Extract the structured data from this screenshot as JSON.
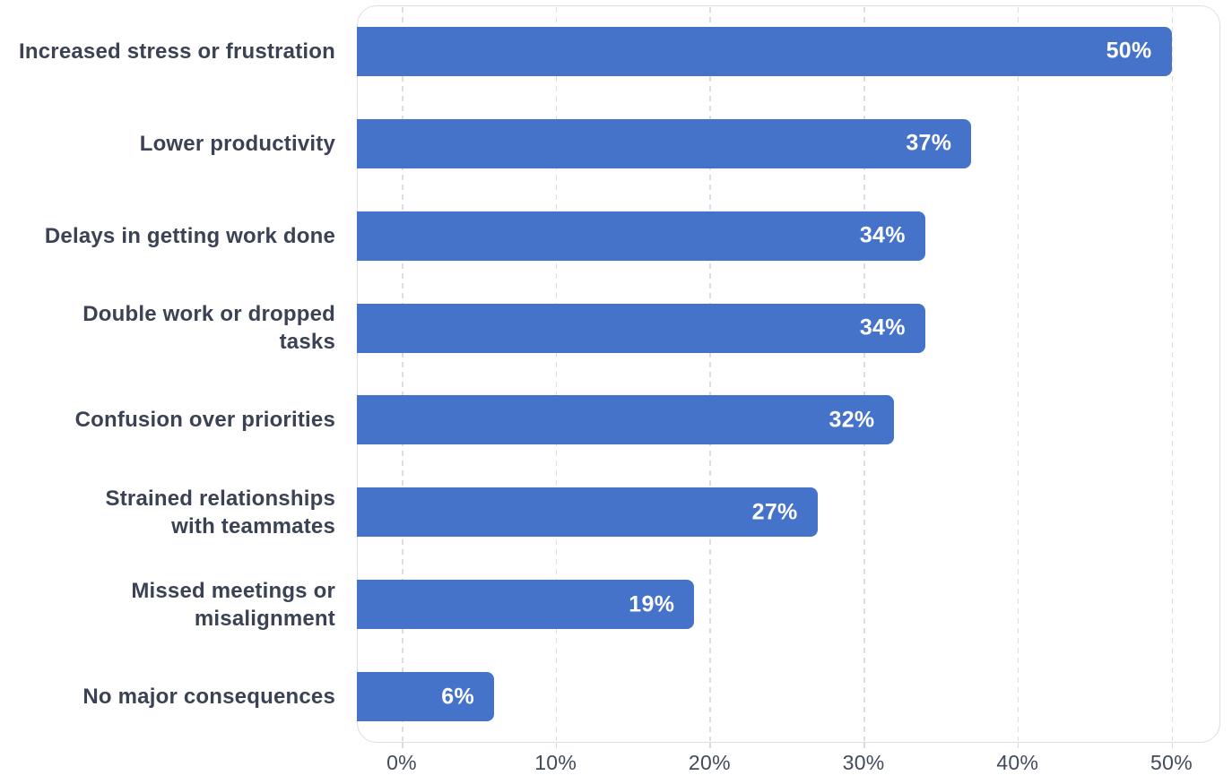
{
  "chart_data": {
    "type": "bar",
    "orientation": "horizontal",
    "categories": [
      "Increased stress or frustration",
      "Lower productivity",
      "Delays in getting work done",
      "Double work or dropped\ntasks",
      "Confusion over priorities",
      "Strained relationships\nwith teammates",
      "Missed meetings or\nmisalignment",
      "No major consequences"
    ],
    "values": [
      50,
      37,
      34,
      34,
      32,
      27,
      19,
      6
    ],
    "value_labels": [
      "50%",
      "37%",
      "34%",
      "34%",
      "32%",
      "27%",
      "19%",
      "6%"
    ],
    "x_ticks": [
      "0%",
      "10%",
      "20%",
      "30%",
      "40%",
      "50%"
    ],
    "x_tick_values": [
      0,
      10,
      20,
      30,
      40,
      50
    ],
    "xlim": [
      0,
      50
    ],
    "grid": "vertical-dashed",
    "legend": "none",
    "colors": {
      "bar": "#4573C9",
      "bar_value_text": "#FFFFFF",
      "category_text": "#3A4254",
      "tick_text": "#424A5C",
      "gridline": "#DBDFE5",
      "plot_border": "#DCDFE5",
      "background": "#FFFFFF"
    }
  }
}
